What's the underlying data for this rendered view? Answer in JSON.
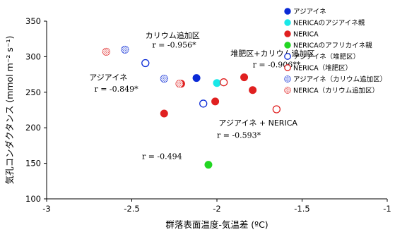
{
  "chart_data": {
    "type": "scatter",
    "xlabel": "群落表面温度-気温差 (ºC)",
    "ylabel": "気孔コンダクタンス (mmol m⁻² s⁻¹)",
    "xlim": [
      -3,
      -1
    ],
    "ylim": [
      100,
      350
    ],
    "xticks": [
      "-3",
      "-2.5",
      "-2",
      "-1.5",
      "-1"
    ],
    "yticks": [
      "100",
      "150",
      "200",
      "250",
      "300",
      "350"
    ],
    "grid": false,
    "legend_position": "right",
    "series": [
      {
        "name": "アジアイネ",
        "color": "#0a2ad6",
        "marker": "filled",
        "points": [
          [
            -2.12,
            270
          ]
        ]
      },
      {
        "name": "NERICAのアジアイネ親",
        "color": "#19e8e8",
        "marker": "filled",
        "points": [
          [
            -2.0,
            263
          ]
        ]
      },
      {
        "name": "NERICA",
        "color": "#e02020",
        "marker": "filled",
        "points": [
          [
            -2.31,
            220
          ],
          [
            -2.21,
            262
          ],
          [
            -2.01,
            237
          ],
          [
            -1.84,
            271
          ],
          [
            -1.79,
            253
          ]
        ]
      },
      {
        "name": "NERICAのアフリカイネ親",
        "color": "#22d622",
        "marker": "filled",
        "points": [
          [
            -2.05,
            148
          ]
        ]
      },
      {
        "name": "アジアイネ（堆肥区）",
        "color": "#0a2ad6",
        "marker": "open",
        "points": [
          [
            -2.42,
            291
          ],
          [
            -2.08,
            234
          ]
        ]
      },
      {
        "name": "NERICA（堆肥区）",
        "color": "#e02020",
        "marker": "open",
        "points": [
          [
            -1.96,
            264
          ],
          [
            -1.65,
            226
          ]
        ]
      },
      {
        "name": "アジアイネ（カリウム追加区）",
        "color": "#0a2ad6",
        "marker": "hatched",
        "points": [
          [
            -2.54,
            310
          ],
          [
            -2.31,
            269
          ]
        ]
      },
      {
        "name": "NERICA（カリウム追加区）",
        "color": "#e02020",
        "marker": "hatched",
        "points": [
          [
            -2.65,
            307
          ],
          [
            -2.22,
            262
          ]
        ]
      }
    ],
    "annotations": [
      {
        "id": "ann-k-label",
        "text": "カリウム追加区",
        "x": -2.42,
        "y": 326,
        "style": "jp"
      },
      {
        "id": "ann-k-r",
        "text": "r = -0.956*",
        "x": -2.38,
        "y": 313,
        "style": "serif"
      },
      {
        "id": "ann-dk-label",
        "text": "堆肥区+カリウム追加区",
        "x": -1.92,
        "y": 301,
        "style": "jp"
      },
      {
        "id": "ann-dk-r",
        "text": "r = -0.906**",
        "x": -1.79,
        "y": 285,
        "style": "serif"
      },
      {
        "id": "ann-asia-label",
        "text": "アジアイネ",
        "x": -2.75,
        "y": 267,
        "style": "jp"
      },
      {
        "id": "ann-asia-r",
        "text": "r = -0.849*",
        "x": -2.72,
        "y": 251,
        "style": "serif"
      },
      {
        "id": "ann-an-label",
        "text": "アジアイネ + NERICA",
        "x": -1.99,
        "y": 203,
        "style": "jp"
      },
      {
        "id": "ann-an-r",
        "text": "r = -0.593*",
        "x": -2.0,
        "y": 186,
        "style": "serif"
      },
      {
        "id": "ann-nr-r",
        "text": "r = -0.494",
        "x": -2.44,
        "y": 156,
        "style": "serif"
      }
    ]
  }
}
